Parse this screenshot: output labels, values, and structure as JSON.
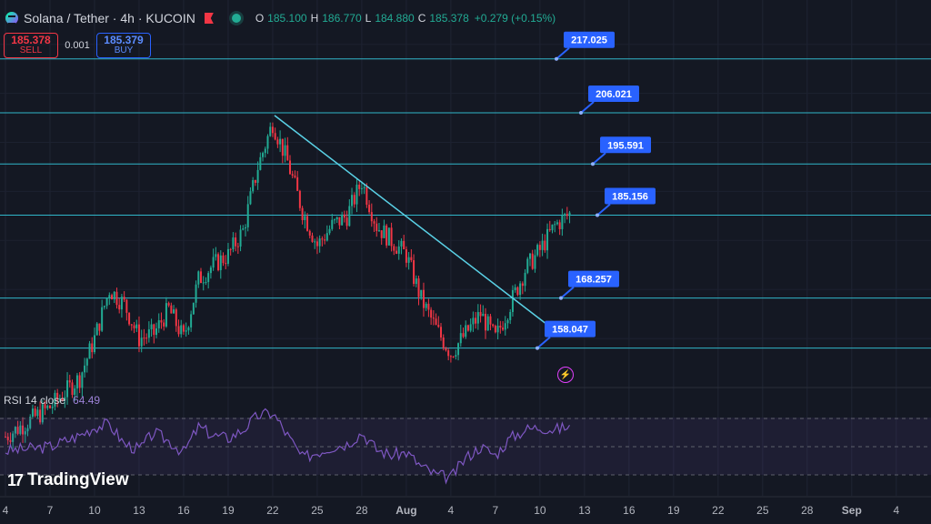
{
  "header": {
    "symbol": "Solana / Tether · 4h · KUCOIN",
    "ohlc": [
      {
        "k": "O",
        "v": "185.100"
      },
      {
        "k": "H",
        "v": "186.770"
      },
      {
        "k": "L",
        "v": "184.880"
      },
      {
        "k": "C",
        "v": "185.378"
      }
    ],
    "change": "+0.279 (+0.15%)"
  },
  "trade": {
    "sell_price": "185.378",
    "sell_label": "SELL",
    "spread": "0.001",
    "buy_price": "185.379",
    "buy_label": "BUY"
  },
  "rsi": {
    "label": "RSI 14 close",
    "value": "64.49"
  },
  "branding": {
    "logo_text": "TradingView",
    "logo_mark": "17"
  },
  "colors": {
    "background": "#141823",
    "up": "#22ab94",
    "down": "#f23645",
    "level_line": "#30b6c9",
    "label_bg": "#2962ff",
    "rsi_line": "#7e57c2"
  },
  "chart_data": {
    "type": "candlestick",
    "title": "",
    "levels": [
      217.025,
      206.021,
      195.591,
      185.156,
      168.257,
      158.047
    ],
    "level_labels": [
      "217.025",
      "206.021",
      "195.591",
      "185.156",
      "168.257",
      "158.047"
    ],
    "trendline": [
      {
        "x": "Jul 22",
        "y": 205.5
      },
      {
        "x": "Aug 10",
        "y": 162.5
      }
    ],
    "date_axis": {
      "ticks": [
        "4",
        "7",
        "10",
        "13",
        "16",
        "19",
        "22",
        "25",
        "28",
        "Aug",
        "4",
        "7",
        "10",
        "13",
        "16",
        "19",
        "22",
        "25",
        "28",
        "Sep",
        "4"
      ]
    },
    "price_path": [
      {
        "d": "Jul 4",
        "p": 140
      },
      {
        "d": "Jul 7",
        "p": 146
      },
      {
        "d": "Jul 9",
        "p": 152
      },
      {
        "d": "Jul 10",
        "p": 160
      },
      {
        "d": "Jul 11",
        "p": 170
      },
      {
        "d": "Jul 12",
        "p": 167
      },
      {
        "d": "Jul 13",
        "p": 160
      },
      {
        "d": "Jul 14",
        "p": 161
      },
      {
        "d": "Jul 15",
        "p": 166
      },
      {
        "d": "Jul 16",
        "p": 160
      },
      {
        "d": "Jul 17",
        "p": 172
      },
      {
        "d": "Jul 18",
        "p": 175
      },
      {
        "d": "Jul 19",
        "p": 177
      },
      {
        "d": "Jul 20",
        "p": 182
      },
      {
        "d": "Jul 21",
        "p": 195
      },
      {
        "d": "Jul 22",
        "p": 204
      },
      {
        "d": "Jul 23",
        "p": 196
      },
      {
        "d": "Jul 24",
        "p": 186
      },
      {
        "d": "Jul 25",
        "p": 179
      },
      {
        "d": "Jul 26",
        "p": 183
      },
      {
        "d": "Jul 27",
        "p": 185
      },
      {
        "d": "Jul 28",
        "p": 192
      },
      {
        "d": "Jul 29",
        "p": 183
      },
      {
        "d": "Jul 30",
        "p": 180
      },
      {
        "d": "Jul 31",
        "p": 177
      },
      {
        "d": "Aug 1",
        "p": 168
      },
      {
        "d": "Aug 2",
        "p": 162
      },
      {
        "d": "Aug 3",
        "p": 157
      },
      {
        "d": "Aug 4",
        "p": 161
      },
      {
        "d": "Aug 5",
        "p": 165
      },
      {
        "d": "Aug 6",
        "p": 160
      },
      {
        "d": "Aug 7",
        "p": 167
      },
      {
        "d": "Aug 8",
        "p": 174
      },
      {
        "d": "Aug 9",
        "p": 178
      },
      {
        "d": "Aug 10",
        "p": 183
      },
      {
        "d": "Aug 11",
        "p": 185.4
      }
    ],
    "rsi_path": [
      {
        "d": "Jul 4",
        "v": 47
      },
      {
        "d": "Jul 7",
        "v": 50
      },
      {
        "d": "Jul 9",
        "v": 58
      },
      {
        "d": "Jul 10",
        "v": 64
      },
      {
        "d": "Jul 11",
        "v": 66
      },
      {
        "d": "Jul 12",
        "v": 52
      },
      {
        "d": "Jul 13",
        "v": 48
      },
      {
        "d": "Jul 14",
        "v": 60
      },
      {
        "d": "Jul 15",
        "v": 54
      },
      {
        "d": "Jul 16",
        "v": 46
      },
      {
        "d": "Jul 17",
        "v": 64
      },
      {
        "d": "Jul 18",
        "v": 58
      },
      {
        "d": "Jul 19",
        "v": 56
      },
      {
        "d": "Jul 20",
        "v": 62
      },
      {
        "d": "Jul 21",
        "v": 72
      },
      {
        "d": "Jul 22",
        "v": 74
      },
      {
        "d": "Jul 23",
        "v": 58
      },
      {
        "d": "Jul 24",
        "v": 42
      },
      {
        "d": "Jul 25",
        "v": 46
      },
      {
        "d": "Jul 26",
        "v": 50
      },
      {
        "d": "Jul 27",
        "v": 52
      },
      {
        "d": "Jul 28",
        "v": 60
      },
      {
        "d": "Jul 29",
        "v": 48
      },
      {
        "d": "Jul 30",
        "v": 44
      },
      {
        "d": "Jul 31",
        "v": 46
      },
      {
        "d": "Aug 1",
        "v": 36
      },
      {
        "d": "Aug 2",
        "v": 30
      },
      {
        "d": "Aug 3",
        "v": 28
      },
      {
        "d": "Aug 4",
        "v": 42
      },
      {
        "d": "Aug 5",
        "v": 50
      },
      {
        "d": "Aug 6",
        "v": 44
      },
      {
        "d": "Aug 7",
        "v": 56
      },
      {
        "d": "Aug 8",
        "v": 62
      },
      {
        "d": "Aug 9",
        "v": 64
      },
      {
        "d": "Aug 10",
        "v": 62
      },
      {
        "d": "Aug 11",
        "v": 64.49
      }
    ],
    "rsi_bands": [
      70,
      50,
      30
    ]
  }
}
